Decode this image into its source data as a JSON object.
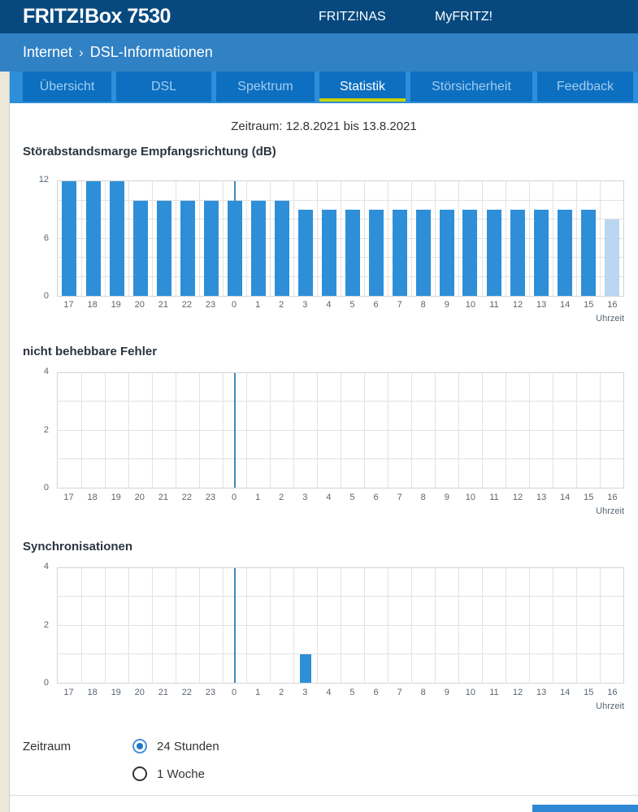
{
  "header": {
    "title": "FRITZ!Box 7530",
    "nav": [
      {
        "label": "FRITZ!NAS"
      },
      {
        "label": "MyFRITZ!"
      }
    ]
  },
  "breadcrumb": {
    "section": "Internet",
    "separator": "›",
    "page": "DSL-Informationen",
    "help": "?"
  },
  "tabs": [
    {
      "label": "Übersicht",
      "active": false
    },
    {
      "label": "DSL",
      "active": false
    },
    {
      "label": "Spektrum",
      "active": false
    },
    {
      "label": "Statistik",
      "active": true
    },
    {
      "label": "Störsicherheit",
      "active": false
    },
    {
      "label": "Feedback",
      "active": false
    }
  ],
  "period": "Zeitraum: 12.8.2021 bis 13.8.2021",
  "chart_data": [
    {
      "type": "bar",
      "title": "Störabstandsmarge Empfangsrichtung (dB)",
      "categories": [
        "17",
        "18",
        "19",
        "20",
        "21",
        "22",
        "23",
        "0",
        "1",
        "2",
        "3",
        "4",
        "5",
        "6",
        "7",
        "8",
        "9",
        "10",
        "11",
        "12",
        "13",
        "14",
        "15",
        "16"
      ],
      "values": [
        12,
        12,
        12,
        10,
        10,
        10,
        10,
        10,
        10,
        10,
        9,
        9,
        9,
        9,
        9,
        9,
        9,
        9,
        9,
        9,
        9,
        9,
        9,
        8
      ],
      "ylim": [
        0,
        12
      ],
      "yticks": [
        0,
        6,
        12
      ],
      "grid_step": 2,
      "xlabel": "Uhrzeit",
      "light_bar_index": 23,
      "midnight_marker_index": 7,
      "legend": "none",
      "grid": "on"
    },
    {
      "type": "bar",
      "title": "nicht behebbare Fehler",
      "categories": [
        "17",
        "18",
        "19",
        "20",
        "21",
        "22",
        "23",
        "0",
        "1",
        "2",
        "3",
        "4",
        "5",
        "6",
        "7",
        "8",
        "9",
        "10",
        "11",
        "12",
        "13",
        "14",
        "15",
        "16"
      ],
      "values": [
        0,
        0,
        0,
        0,
        0,
        0,
        0,
        0,
        0,
        0,
        0,
        0,
        0,
        0,
        0,
        0,
        0,
        0,
        0,
        0,
        0,
        0,
        0,
        0
      ],
      "ylim": [
        0,
        4
      ],
      "yticks": [
        0,
        2,
        4
      ],
      "grid_step": 1,
      "xlabel": "Uhrzeit",
      "midnight_marker_index": 7,
      "legend": "none",
      "grid": "on"
    },
    {
      "type": "bar",
      "title": "Synchronisationen",
      "categories": [
        "17",
        "18",
        "19",
        "20",
        "21",
        "22",
        "23",
        "0",
        "1",
        "2",
        "3",
        "4",
        "5",
        "6",
        "7",
        "8",
        "9",
        "10",
        "11",
        "12",
        "13",
        "14",
        "15",
        "16"
      ],
      "values": [
        0,
        0,
        0,
        0,
        0,
        0,
        0,
        0,
        0,
        0,
        1,
        0,
        0,
        0,
        0,
        0,
        0,
        0,
        0,
        0,
        0,
        0,
        0,
        0
      ],
      "ylim": [
        0,
        4
      ],
      "yticks": [
        0,
        2,
        4
      ],
      "grid_step": 1,
      "xlabel": "Uhrzeit",
      "midnight_marker_index": 7,
      "legend": "none",
      "grid": "on"
    }
  ],
  "footer": {
    "label": "Zeitraum",
    "options": [
      {
        "label": "24 Stunden",
        "selected": true
      },
      {
        "label": "1 Woche",
        "selected": false
      }
    ]
  },
  "colors": {
    "bar": "#2e8fd8",
    "bar_light": "#b9d7f0",
    "marker_line": "#4288b8",
    "accent_underline": "#c9d400",
    "header_bg": "#07497f",
    "breadcrumb_bg": "#3181c5",
    "tabbar_bg": "#2e8ed9",
    "tab_bg": "#0d6fc0",
    "button": "#2e87d3"
  }
}
